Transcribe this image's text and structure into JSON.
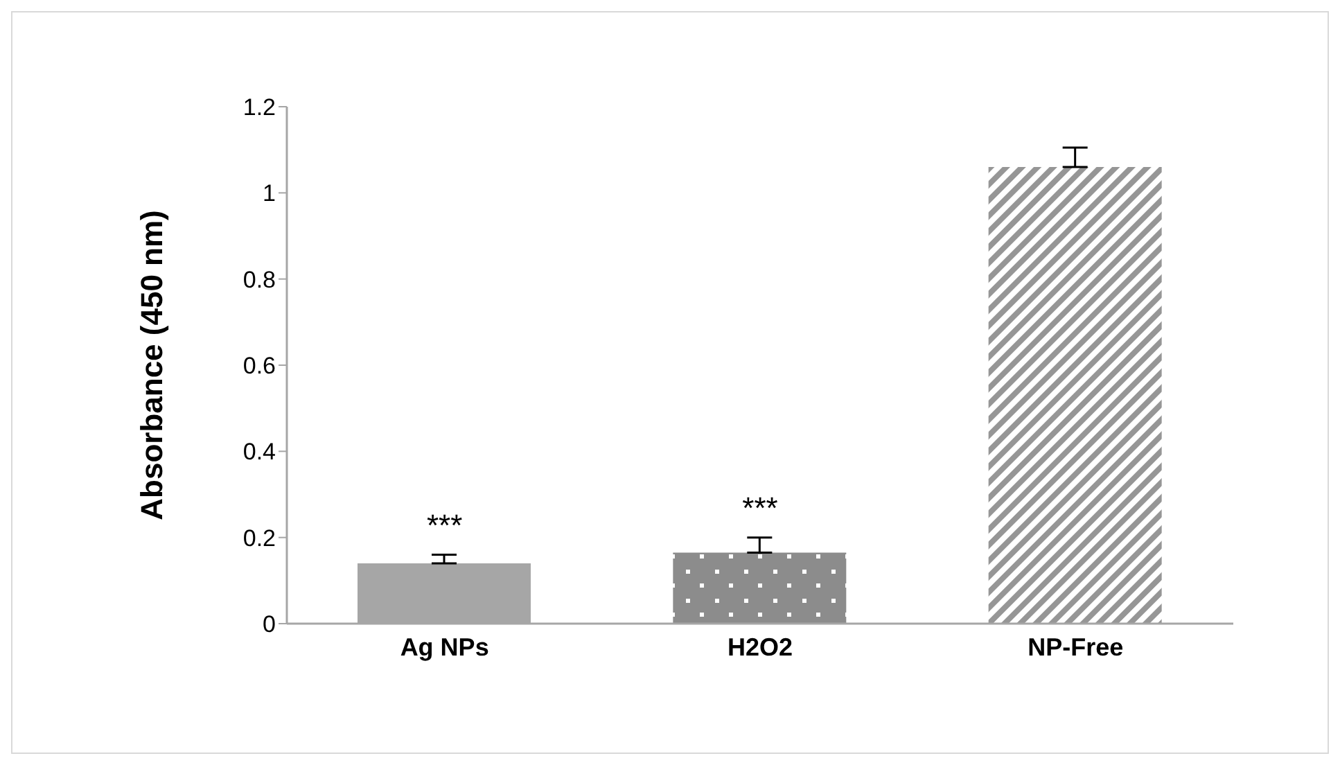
{
  "chart_data": {
    "type": "bar",
    "ylabel": "Absorbance (450 nm)",
    "categories": [
      "Ag NPs",
      "H2O2",
      "NP-Free"
    ],
    "values": [
      0.14,
      0.165,
      1.06
    ],
    "colors": [
      "#a6a6a6",
      "#8c8c8c",
      "#969696"
    ],
    "errors": [
      [
        0.14,
        0.16
      ],
      [
        0.165,
        0.2
      ],
      [
        1.06,
        1.105
      ]
    ],
    "ylim": [
      0,
      1.2
    ],
    "yticks": [
      0,
      0.2,
      0.4,
      0.6,
      0.8,
      1,
      1.2
    ],
    "grid": false,
    "annotations": [
      {
        "text": "***",
        "x": "Ag NPs",
        "y": 0.16
      },
      {
        "text": "***",
        "x": "H2O2",
        "y": 0.2
      }
    ]
  }
}
